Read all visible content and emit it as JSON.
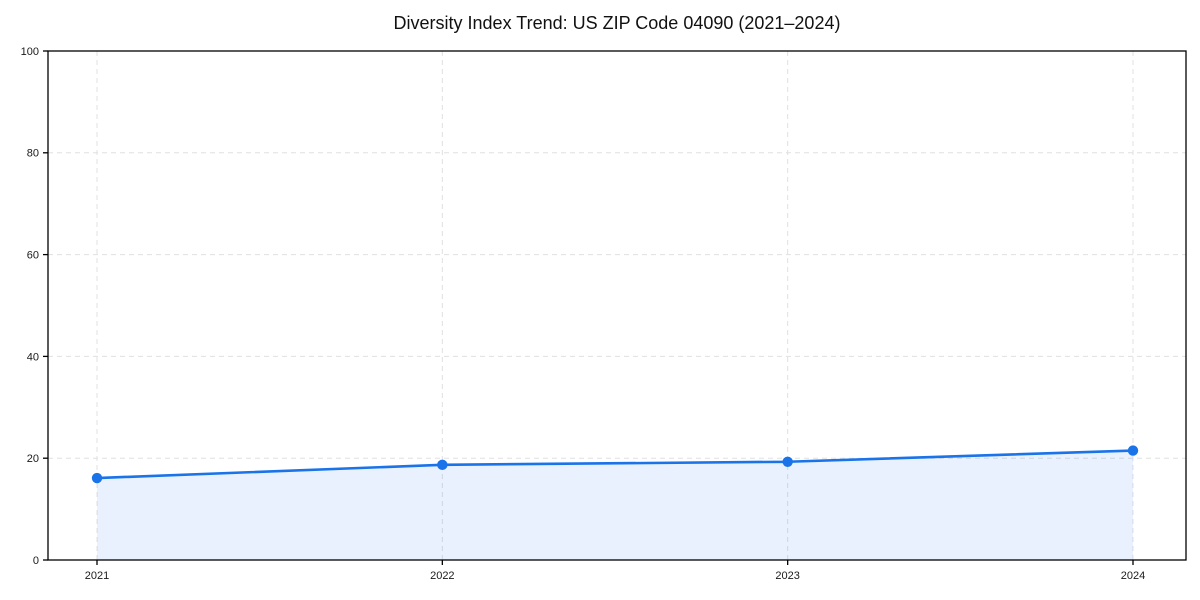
{
  "chart_data": {
    "type": "line",
    "title": "Diversity Index Trend: US ZIP Code 04090 (2021–2024)",
    "categories": [
      "2021",
      "2022",
      "2023",
      "2024"
    ],
    "series": [
      {
        "name": "Diversity Index",
        "values": [
          16.1,
          18.7,
          19.3,
          21.5
        ]
      }
    ],
    "xlabel": "",
    "ylabel": "",
    "ylim": [
      0,
      100
    ],
    "yticks": [
      0,
      20,
      40,
      60,
      80,
      100
    ],
    "grid": true,
    "grid_style": "dashed",
    "legend_position": "none",
    "area_fill": true,
    "markers": true
  },
  "style": {
    "line_color": "#1a73e8",
    "marker_color": "#1a73e8",
    "fill_color": "#1a73e8",
    "fill_opacity": 0.1,
    "grid_color": "#e0e0e0",
    "axis_color": "#000000",
    "tick_label_color": "#1a1a1a",
    "title_color": "#111111",
    "background": "#ffffff"
  }
}
